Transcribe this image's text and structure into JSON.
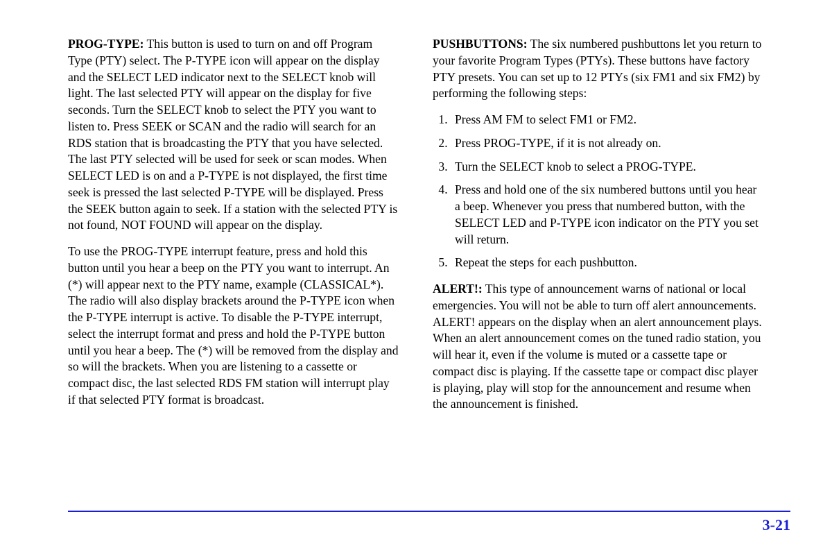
{
  "colors": {
    "text": "#000000",
    "background": "#ffffff",
    "accent": "#1a1fd6"
  },
  "left": {
    "p1": {
      "lead": "PROG-TYPE:",
      "body": " This button is used to turn on and off Program Type (PTY) select. The P-TYPE icon will appear on the display and the SELECT LED indicator next to the SELECT knob will light. The last selected PTY will appear on the display for five seconds. Turn the SELECT knob to select the PTY you want to listen to. Press SEEK or SCAN and the radio will search for an RDS station that is broadcasting the PTY that you have selected. The last PTY selected will be used for seek or scan modes. When SELECT LED is on and a P-TYPE is not displayed, the first time seek is pressed the last selected P-TYPE will be displayed. Press the SEEK button again to seek. If a station with the selected PTY is not found, NOT FOUND will appear on the display."
    },
    "p2": "To use the PROG-TYPE interrupt feature, press and hold this button until you hear a beep on the PTY you want to interrupt. An (*) will appear next to the PTY name, example (CLASSICAL*). The radio will also display brackets around the P-TYPE icon when the P-TYPE interrupt is active. To disable the P-TYPE interrupt, select the interrupt format and press and hold the P-TYPE button until you hear a beep. The (*) will be removed from the display and so will the brackets. When you are listening to a cassette or compact disc, the last selected RDS FM station will interrupt play if that selected PTY format is broadcast."
  },
  "right": {
    "p1": {
      "lead": "PUSHBUTTONS:",
      "body": " The six numbered pushbuttons let you return to your favorite Program Types (PTYs). These buttons have factory PTY presets. You can set up to 12 PTYs (six FM1 and six FM2) by performing the following steps:"
    },
    "steps": [
      "Press AM FM to select FM1 or FM2.",
      "Press PROG-TYPE, if it is not already on.",
      "Turn the SELECT knob to select a PROG-TYPE.",
      "Press and hold one of the six numbered buttons until you hear a beep. Whenever you press that numbered button, with the SELECT LED and P-TYPE icon indicator on the PTY you set will return.",
      "Repeat the steps for each pushbutton."
    ],
    "p2": {
      "lead": "ALERT!:",
      "body": " This type of announcement warns of national or local emergencies. You will not be able to turn off alert announcements. ALERT! appears on the display when an alert announcement plays. When an alert announcement comes on the tuned radio station, you will hear it, even if the volume is muted or a cassette tape or compact disc is playing. If the cassette tape or compact disc player is playing, play will stop for the announcement and resume when the announcement is finished."
    }
  },
  "page_number": "3-21"
}
